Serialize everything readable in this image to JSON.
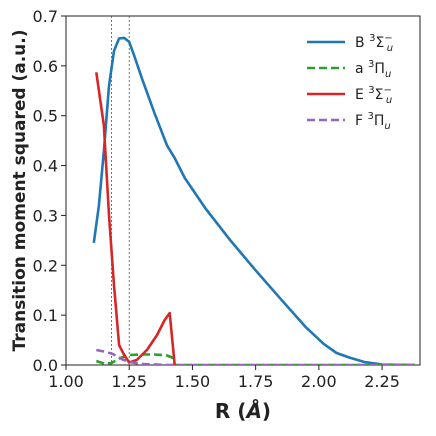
{
  "chart_data": {
    "type": "line",
    "title": "",
    "xlabel_text": "R (",
    "xlabel_unit": "Å",
    "xlabel_close": ")",
    "ylabel": "Transition moment squared (a.u.)",
    "xlim": [
      1.0,
      2.4
    ],
    "ylim": [
      0.0,
      0.7
    ],
    "xticks": [
      "1.00",
      "1.25",
      "1.50",
      "1.75",
      "2.00",
      "2.25"
    ],
    "xtick_values": [
      1.0,
      1.25,
      1.5,
      1.75,
      2.0,
      2.25
    ],
    "yticks": [
      "0.0",
      "0.1",
      "0.2",
      "0.3",
      "0.4",
      "0.5",
      "0.6",
      "0.7"
    ],
    "ytick_values": [
      0.0,
      0.1,
      0.2,
      0.3,
      0.4,
      0.5,
      0.6,
      0.7
    ],
    "vlines": [
      1.18,
      1.25
    ],
    "grid": false,
    "legend_position": "top-right",
    "series": [
      {
        "label_main": "B ",
        "label_sup": "3",
        "label_sym": "Σ",
        "label_sub": "u",
        "label_sym_sup": "−",
        "color": "#1f77b4",
        "dash": "solid",
        "x": [
          1.11,
          1.13,
          1.15,
          1.17,
          1.19,
          1.21,
          1.23,
          1.25,
          1.27,
          1.3,
          1.35,
          1.4,
          1.43,
          1.47,
          1.55,
          1.65,
          1.75,
          1.85,
          1.95,
          2.02,
          2.07,
          2.12,
          2.18,
          2.25,
          2.38
        ],
        "y": [
          0.245,
          0.32,
          0.43,
          0.56,
          0.63,
          0.655,
          0.656,
          0.648,
          0.62,
          0.575,
          0.505,
          0.44,
          0.415,
          0.375,
          0.315,
          0.25,
          0.19,
          0.132,
          0.075,
          0.042,
          0.024,
          0.015,
          0.006,
          0.001,
          0.0
        ]
      },
      {
        "label_main": "a ",
        "label_sup": "3",
        "label_sym": "Π",
        "label_sub": "u",
        "label_sym_sup": "",
        "color": "#2ca02c",
        "dash": "dashed",
        "x": [
          1.12,
          1.15,
          1.18,
          1.2,
          1.22,
          1.25,
          1.3,
          1.35,
          1.4,
          1.42,
          1.43,
          1.5,
          2.38
        ],
        "y": [
          0.008,
          0.003,
          0.004,
          0.01,
          0.015,
          0.02,
          0.021,
          0.021,
          0.019,
          0.015,
          0.0,
          0.0,
          0.0
        ]
      },
      {
        "label_main": "E ",
        "label_sup": "3",
        "label_sym": "Σ",
        "label_sub": "u",
        "label_sym_sup": "−",
        "color": "#d62728",
        "dash": "solid",
        "x": [
          1.12,
          1.15,
          1.17,
          1.19,
          1.21,
          1.23,
          1.25,
          1.28,
          1.32,
          1.36,
          1.39,
          1.41,
          1.43
        ],
        "y": [
          0.587,
          0.48,
          0.3,
          0.16,
          0.04,
          0.02,
          0.005,
          0.01,
          0.03,
          0.06,
          0.09,
          0.104,
          0.0
        ]
      },
      {
        "label_main": "F ",
        "label_sup": "3",
        "label_sym": "Π",
        "label_sub": "u",
        "label_sym_sup": "",
        "color": "#9467bd",
        "dash": "dashed",
        "x": [
          1.12,
          1.15,
          1.18,
          1.2,
          1.22,
          1.25,
          1.3,
          1.4,
          1.5,
          1.75,
          2.0,
          2.38
        ],
        "y": [
          0.03,
          0.027,
          0.023,
          0.018,
          0.012,
          0.006,
          0.002,
          0.0,
          0.0,
          0.0,
          0.0,
          0.0
        ]
      }
    ]
  }
}
